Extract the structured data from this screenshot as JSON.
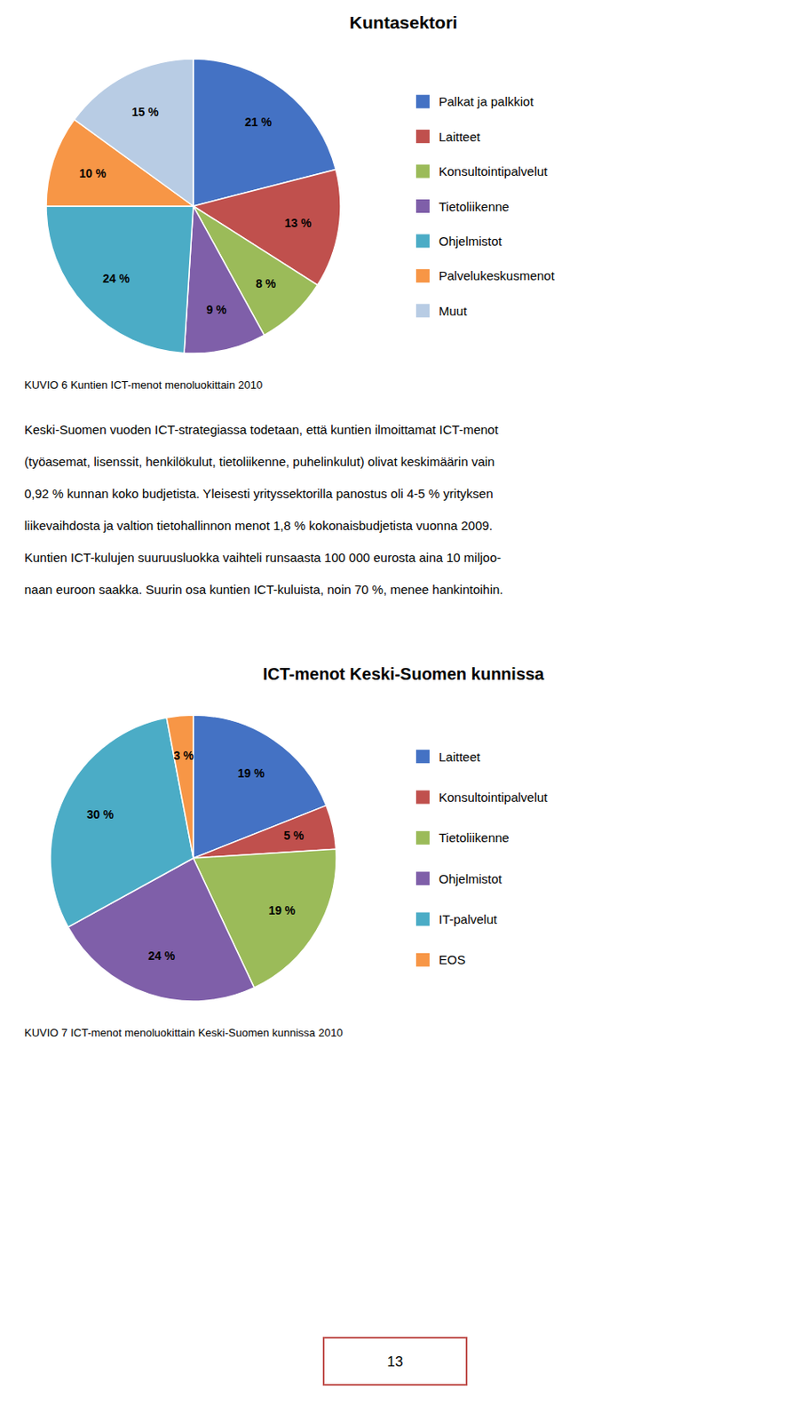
{
  "chart_data": [
    {
      "type": "pie",
      "title": "Kuntasektori",
      "categories": [
        "Palkat ja palkkiot",
        "Laitteet",
        "Konsultointipalvelut",
        "Tietoliikenne",
        "Ohjelmistot",
        "Palvelukeskusmenot",
        "Muut"
      ],
      "values": [
        21,
        13,
        8,
        9,
        24,
        10,
        15
      ],
      "value_labels": [
        "21 %",
        "13 %",
        "8 %",
        "9 %",
        "24 %",
        "10 %",
        "15 %"
      ],
      "colors": [
        "#4472C4",
        "#C0504D",
        "#9BBB59",
        "#7F5FA9",
        "#4BACC6",
        "#F79646",
        "#B8CCE4"
      ],
      "data_labels": true,
      "caption": "KUVIO 6 Kuntien ICT-menot menoluokittain 2010"
    },
    {
      "type": "pie",
      "title": "ICT-menot Keski-Suomen kunnissa",
      "categories": [
        "Laitteet",
        "Konsultointipalvelut",
        "Tietoliikenne",
        "Ohjelmistot",
        "IT-palvelut",
        "EOS"
      ],
      "values": [
        19,
        5,
        19,
        24,
        30,
        3
      ],
      "value_labels": [
        "19 %",
        "5 %",
        "19 %",
        "24 %",
        "30 %",
        "3 %"
      ],
      "colors": [
        "#4472C4",
        "#C0504D",
        "#9BBB59",
        "#7F5FA9",
        "#4BACC6",
        "#F79646"
      ],
      "data_labels": true,
      "caption": "KUVIO 7 ICT-menot menoluokittain Keski-Suomen kunnissa 2010"
    }
  ],
  "body_text": [
    "Keski-Suomen vuoden ICT-strategiassa todetaan, että kuntien ilmoittamat ICT-menot",
    "(työasemat, lisenssit, henkilökulut, tietoliikenne, puhelinkulut) olivat keskimäärin vain",
    "0,92 % kunnan koko budjetista. Yleisesti yrityssektorilla panostus oli 4-5 % yrityksen",
    "liikevaihdosta ja valtion tietohallinnon menot 1,8 % kokonaisbudjetista vuonna 2009.",
    "Kuntien ICT-kulujen suuruusluokka vaihteli runsaasta 100 000 eurosta aina 10 miljoo-",
    "naan euroon saakka. Suurin osa kuntien ICT-kuluista, noin 70 %, menee hankintoihin."
  ],
  "page_number": "13"
}
